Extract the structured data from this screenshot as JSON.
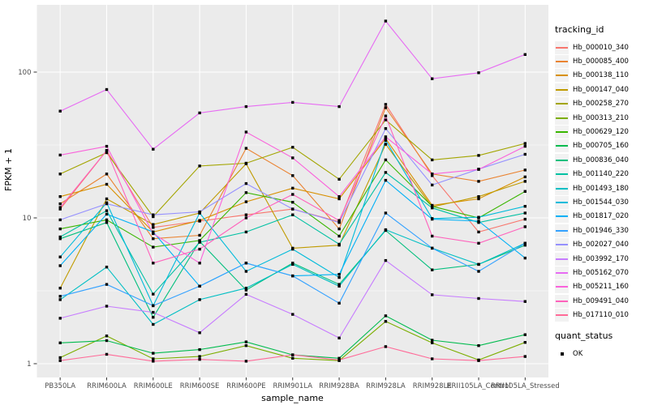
{
  "figure": {
    "y_axis_title": "FPKM + 1",
    "x_axis_title": "sample_name",
    "legend": {
      "tracking_title": "tracking_id",
      "quant_title": "quant_status",
      "quant_items": [
        {
          "label": "OK",
          "marker": "black-filled-square"
        }
      ]
    },
    "colors": {
      "figure_bg": "#FFFFFF",
      "panel_bg": "#EBEBEB",
      "grid": "#FFFFFF",
      "marker": "#000000",
      "tick_mark": "#333333",
      "tick_text": "#4D4D4D",
      "title_text": "#000000",
      "legend_key_bg": "#F2F2F2"
    }
  },
  "chart_data": {
    "type": "line",
    "title": "",
    "xlabel": "sample_name",
    "ylabel": "FPKM + 1",
    "y_scale": "log10",
    "ylim": [
      0.8,
      290
    ],
    "y_major_ticks": [
      1,
      10,
      100
    ],
    "y_major_tick_labels": [
      "1",
      "10",
      "100"
    ],
    "y_minor_ticks": [
      3.162,
      31.62
    ],
    "grid": true,
    "legend_position": "right",
    "point_marker": "filled-square-black",
    "categories": [
      "PB350LA",
      "RRIM600LA",
      "RRIM600LE",
      "RRIM600SE",
      "RRIM600PE",
      "RRIM901LA",
      "RRIM928BA",
      "RRIM928LA",
      "RRIM928LE",
      "RRII105LA_Control",
      "RRII105LA_Stressed"
    ],
    "series": [
      {
        "name": "Hb_000010_340",
        "color": "#F8766D",
        "values": [
          11.5,
          29,
          8.6,
          9.5,
          10.5,
          11.5,
          9.4,
          60,
          19.5,
          8.0,
          9.8
        ]
      },
      {
        "name": "Hb_000085_400",
        "color": "#EA8331",
        "values": [
          12.5,
          20,
          7.2,
          7.6,
          30,
          19.5,
          8.4,
          57,
          20,
          17.8,
          21.3
        ]
      },
      {
        "name": "Hb_000138_110",
        "color": "#D89000",
        "values": [
          14,
          17,
          8.0,
          9.6,
          12.9,
          16,
          13.5,
          35,
          12.2,
          13.5,
          19.1
        ]
      },
      {
        "name": "Hb_000147_040",
        "color": "#C09B00",
        "values": [
          3.3,
          13.5,
          9.0,
          10.8,
          23.5,
          6.2,
          6.5,
          32,
          11.9,
          14,
          17.8
        ]
      },
      {
        "name": "Hb_000258_270",
        "color": "#A3A500",
        "values": [
          20,
          28,
          10.2,
          22.7,
          23.7,
          30.5,
          18.4,
          47,
          25,
          26.8,
          32.4
        ]
      },
      {
        "name": "Hb_000313_210",
        "color": "#7CAE00",
        "values": [
          1.1,
          1.55,
          1.08,
          1.12,
          1.33,
          1.09,
          1.05,
          1.95,
          1.39,
          1.06,
          1.4
        ]
      },
      {
        "name": "Hb_000629_120",
        "color": "#39B600",
        "values": [
          8.4,
          9.7,
          6.3,
          7.0,
          14.9,
          12.8,
          7.5,
          25,
          12.0,
          10.0,
          15.2
        ]
      },
      {
        "name": "Hb_000705_160",
        "color": "#00BB4E",
        "values": [
          1.39,
          1.44,
          1.18,
          1.25,
          1.41,
          1.15,
          1.09,
          2.13,
          1.45,
          1.33,
          1.58
        ]
      },
      {
        "name": "Hb_000836_040",
        "color": "#00BF7D",
        "values": [
          7.2,
          9.3,
          2.08,
          6.9,
          3.2,
          4.9,
          3.5,
          8.2,
          4.4,
          4.8,
          6.5
        ]
      },
      {
        "name": "Hb_001140_220",
        "color": "#00C1A3",
        "values": [
          7.4,
          11.2,
          3.0,
          6.8,
          8.0,
          10.5,
          6.6,
          20.5,
          11.7,
          9.3,
          10.8
        ]
      },
      {
        "name": "Hb_001493_180",
        "color": "#00BFC4",
        "values": [
          2.75,
          4.6,
          1.86,
          2.75,
          3.3,
          4.8,
          3.4,
          8.3,
          6.2,
          4.8,
          6.7
        ]
      },
      {
        "name": "Hb_001544_030",
        "color": "#00BBDA",
        "values": [
          5.4,
          12.7,
          2.5,
          10.8,
          4.3,
          6.1,
          3.9,
          34,
          9.9,
          10.1,
          12.0
        ]
      },
      {
        "name": "Hb_001817_020",
        "color": "#00B0F6",
        "values": [
          4.7,
          10.6,
          8.0,
          3.4,
          4.9,
          4.0,
          4.1,
          18.1,
          9.8,
          9.5,
          5.3
        ]
      },
      {
        "name": "Hb_001946_330",
        "color": "#35A2FF",
        "values": [
          2.9,
          3.5,
          2.5,
          3.4,
          4.9,
          4.0,
          2.6,
          10.8,
          6.2,
          4.3,
          6.7
        ]
      },
      {
        "name": "Hb_002027_040",
        "color": "#9590FF",
        "values": [
          9.7,
          12.5,
          10.5,
          11.0,
          17.2,
          11.5,
          9.3,
          41,
          16.8,
          21.6,
          27.3
        ]
      },
      {
        "name": "Hb_003992_170",
        "color": "#C77CFF",
        "values": [
          2.05,
          2.48,
          2.25,
          1.63,
          2.99,
          2.18,
          1.5,
          5.1,
          2.97,
          2.8,
          2.67
        ]
      },
      {
        "name": "Hb_005162_070",
        "color": "#E76BF3",
        "values": [
          54,
          76,
          29.6,
          52.5,
          58,
          62,
          58,
          224,
          90,
          99,
          132
        ]
      },
      {
        "name": "Hb_005211_160",
        "color": "#FA62DB",
        "values": [
          27,
          31,
          7.8,
          4.9,
          38.8,
          25.8,
          14.0,
          36,
          20,
          21.5,
          31
        ]
      },
      {
        "name": "Hb_009491_040",
        "color": "#FF62BC",
        "values": [
          11.8,
          29,
          4.9,
          6.1,
          10.0,
          14.5,
          9.6,
          50,
          7.5,
          6.7,
          8.7
        ]
      },
      {
        "name": "Hb_017110_010",
        "color": "#FF6A98",
        "values": [
          1.05,
          1.16,
          1.04,
          1.07,
          1.04,
          1.15,
          1.06,
          1.31,
          1.08,
          1.05,
          1.12
        ]
      }
    ]
  }
}
